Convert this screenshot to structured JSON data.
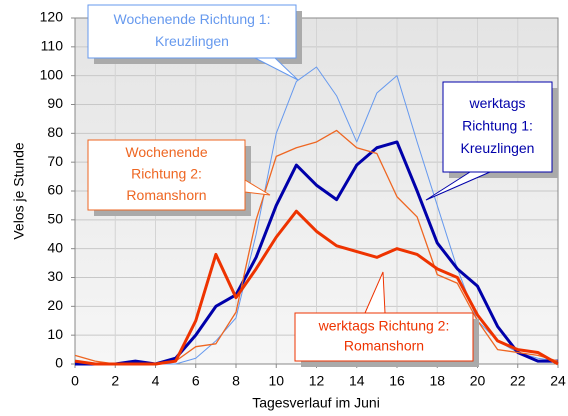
{
  "chart_data": {
    "type": "line",
    "x_label": "Tagesverlauf im Juni",
    "y_label": "Velos je Stunde",
    "x": [
      0,
      1,
      2,
      3,
      4,
      5,
      6,
      7,
      8,
      9,
      10,
      11,
      12,
      13,
      14,
      15,
      16,
      17,
      18,
      19,
      20,
      21,
      22,
      23,
      24
    ],
    "xlim": [
      0,
      24
    ],
    "xticks": [
      0,
      2,
      4,
      6,
      8,
      10,
      12,
      14,
      16,
      18,
      20,
      22,
      24
    ],
    "ylim": [
      0,
      120
    ],
    "yticks": [
      0,
      10,
      20,
      30,
      40,
      50,
      60,
      70,
      80,
      90,
      100,
      110,
      120
    ],
    "grid": true,
    "series": [
      {
        "label_lines": [
          "Wochenende Richtung 1:",
          "Kreuzlingen"
        ],
        "color": "#6699ee",
        "width": 1,
        "values": [
          1,
          0,
          0,
          0,
          0,
          0,
          2,
          8,
          16,
          45,
          80,
          98,
          103,
          93,
          77,
          94,
          100,
          77,
          55,
          33,
          15,
          8,
          4,
          2,
          1
        ]
      },
      {
        "label_lines": [
          "werktags",
          "Richtung 1:",
          "Kreuzlingen"
        ],
        "color": "#0000aa",
        "width": 3,
        "values": [
          0,
          0,
          0,
          1,
          0,
          2,
          10,
          20,
          24,
          37,
          55,
          69,
          62,
          57,
          69,
          75,
          77,
          60,
          42,
          33,
          27,
          13,
          4,
          1,
          1
        ]
      },
      {
        "label_lines": [
          "Wochenende",
          "Richtung 2:",
          "Romanshorn"
        ],
        "color": "#ee6622",
        "width": 1.3,
        "values": [
          3,
          1,
          0,
          0,
          0,
          1,
          6,
          7,
          18,
          50,
          72,
          75,
          77,
          81,
          75,
          73,
          58,
          51,
          31,
          28,
          15,
          5,
          4,
          3,
          1
        ]
      },
      {
        "label_lines": [
          "werktags Richtung 2:",
          "Romanshorn"
        ],
        "color": "#ee3300",
        "width": 3,
        "values": [
          1,
          0,
          0,
          0,
          0,
          1,
          15,
          38,
          23,
          33,
          44,
          53,
          46,
          41,
          39,
          37,
          40,
          38,
          33,
          30,
          17,
          8,
          5,
          4,
          0
        ]
      }
    ]
  }
}
